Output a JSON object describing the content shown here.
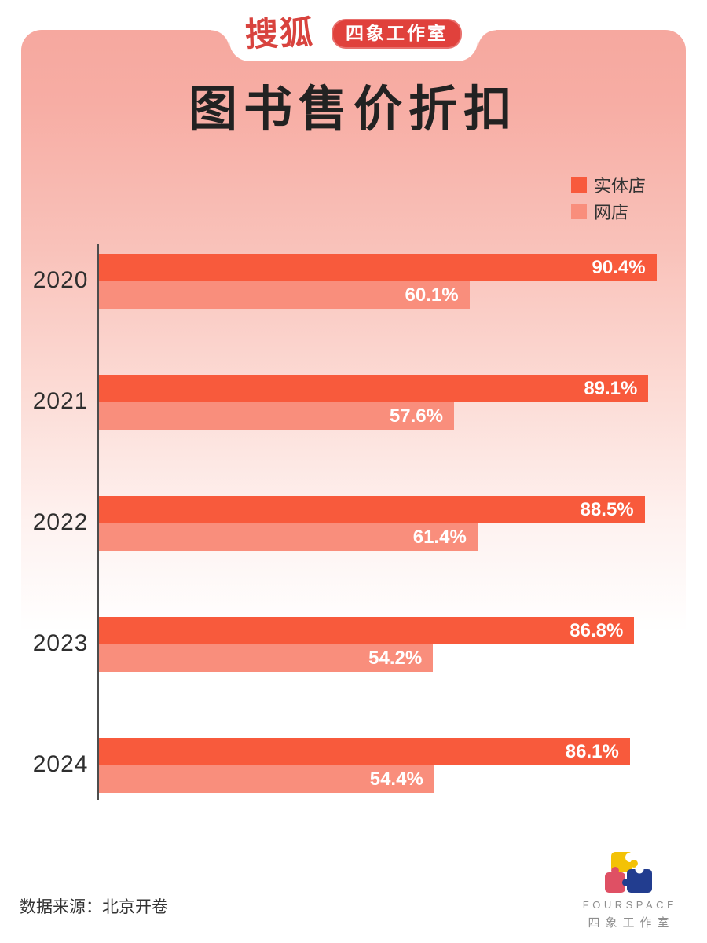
{
  "header": {
    "sohu": "搜狐",
    "badge": "四象工作室"
  },
  "title": "图书售价折扣",
  "legend": {
    "items": [
      {
        "label": "实体店",
        "color": "#f85a3c"
      },
      {
        "label": "网店",
        "color": "#f98e7c"
      }
    ]
  },
  "chart_data": {
    "type": "bar",
    "orientation": "horizontal",
    "title": "图书售价折扣",
    "categories": [
      "2020",
      "2021",
      "2022",
      "2023",
      "2024"
    ],
    "series": [
      {
        "name": "实体店",
        "color": "#f85a3c",
        "values": [
          90.4,
          89.1,
          88.5,
          86.8,
          86.1
        ]
      },
      {
        "name": "网店",
        "color": "#f98e7c",
        "values": [
          60.1,
          57.6,
          61.4,
          54.2,
          54.4
        ]
      }
    ],
    "value_suffix": "%",
    "xlim": [
      0,
      100
    ],
    "value_labels": "inside-end",
    "legend_position": "top-right",
    "grid": false
  },
  "footer": {
    "source": "数据来源：北京开卷",
    "fourspace": {
      "name": "FOURSPACE",
      "subtitle": "四象工作室"
    }
  },
  "colors": {
    "card_top": "#f6a89f",
    "badge_red": "#e0413c",
    "sohu_red": "#d8433e",
    "axis": "#4d4d4d",
    "logo_yellow": "#f3c206",
    "logo_red": "#df5064",
    "logo_blue": "#223d8f"
  }
}
